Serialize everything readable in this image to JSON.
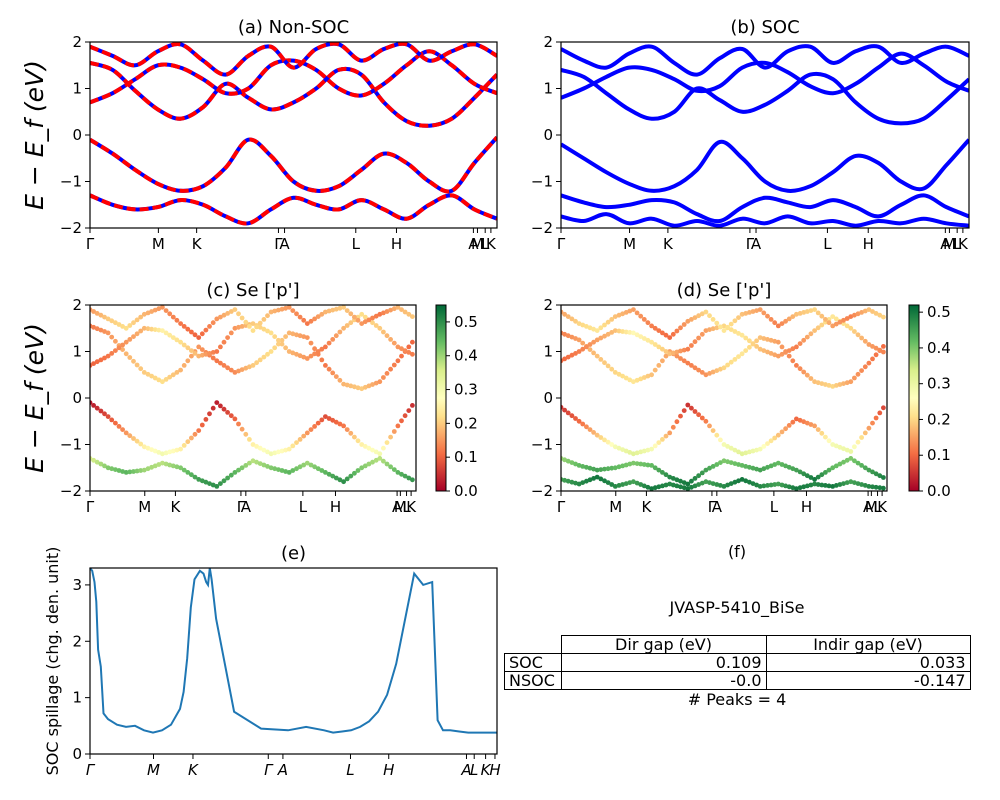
{
  "chart_data": [
    {
      "id": "a",
      "type": "line",
      "title": "(a) Non-SOC",
      "ylabel": "E − E_f (eV)",
      "ylim": [
        -2,
        2
      ],
      "yticks": [
        "−2",
        "−1",
        "0",
        "1",
        "2"
      ],
      "xticks": [
        "Γ",
        "M",
        "K",
        "Γ",
        "A",
        "L",
        "H",
        "A",
        "M",
        "L",
        "K"
      ],
      "series": [
        {
          "color": "#ff0000",
          "values": [
            1.55,
            1.4,
            0.95,
            0.55,
            0.35,
            0.6,
            1.1,
            0.8,
            0.55,
            0.7,
            1.0,
            1.4,
            1.3,
            0.7,
            0.3,
            0.2,
            0.35,
            0.8,
            1.3
          ]
        },
        {
          "color": "#ff0000",
          "values": [
            0.7,
            0.9,
            1.2,
            1.5,
            1.45,
            1.2,
            0.9,
            1.0,
            1.5,
            1.6,
            1.4,
            1.0,
            0.85,
            1.1,
            1.5,
            1.8,
            1.5,
            1.1,
            0.9
          ]
        },
        {
          "color": "#ff0000",
          "values": [
            -0.1,
            -0.4,
            -0.75,
            -1.05,
            -1.2,
            -1.1,
            -0.7,
            -0.1,
            -0.45,
            -1.0,
            -1.2,
            -1.1,
            -0.75,
            -0.4,
            -0.6,
            -1.0,
            -1.2,
            -0.6,
            -0.05
          ]
        },
        {
          "color": "#ff0000",
          "values": [
            -1.3,
            -1.5,
            -1.6,
            -1.55,
            -1.4,
            -1.5,
            -1.75,
            -1.9,
            -1.6,
            -1.35,
            -1.5,
            -1.6,
            -1.4,
            -1.6,
            -1.8,
            -1.5,
            -1.3,
            -1.6,
            -1.8
          ]
        },
        {
          "color": "#ff0000",
          "values": [
            1.9,
            1.7,
            1.5,
            1.8,
            1.95,
            1.6,
            1.3,
            1.7,
            1.9,
            1.45,
            1.85,
            1.95,
            1.6,
            1.85,
            1.95,
            1.6,
            1.8,
            1.95,
            1.7
          ]
        }
      ]
    },
    {
      "id": "b",
      "type": "line",
      "title": "(b) SOC",
      "ylim": [
        -2,
        2
      ],
      "yticks": [
        "−2",
        "−1",
        "0",
        "1",
        "2"
      ],
      "xticks": [
        "Γ",
        "M",
        "K",
        "Γ",
        "A",
        "L",
        "H",
        "A",
        "M",
        "L",
        "K"
      ],
      "series": [
        {
          "color": "#0000ff",
          "values": [
            1.4,
            1.25,
            0.9,
            0.55,
            0.35,
            0.5,
            1.0,
            0.75,
            0.5,
            0.65,
            0.95,
            1.3,
            1.2,
            0.7,
            0.35,
            0.25,
            0.35,
            0.75,
            1.2
          ]
        },
        {
          "color": "#0000ff",
          "values": [
            0.8,
            1.0,
            1.25,
            1.45,
            1.4,
            1.2,
            0.95,
            1.05,
            1.45,
            1.55,
            1.35,
            1.05,
            0.9,
            1.1,
            1.45,
            1.75,
            1.5,
            1.15,
            0.95
          ]
        },
        {
          "color": "#0000ff",
          "values": [
            -0.2,
            -0.5,
            -0.8,
            -1.05,
            -1.2,
            -1.1,
            -0.75,
            -0.15,
            -0.5,
            -1.0,
            -1.2,
            -1.1,
            -0.8,
            -0.45,
            -0.6,
            -1.0,
            -1.15,
            -0.65,
            -0.1
          ]
        },
        {
          "color": "#0000ff",
          "values": [
            -1.3,
            -1.45,
            -1.55,
            -1.5,
            -1.4,
            -1.45,
            -1.7,
            -1.85,
            -1.55,
            -1.35,
            -1.45,
            -1.55,
            -1.4,
            -1.55,
            -1.75,
            -1.5,
            -1.3,
            -1.55,
            -1.75
          ]
        },
        {
          "color": "#0000ff",
          "values": [
            -1.75,
            -1.85,
            -1.7,
            -1.9,
            -1.8,
            -1.95,
            -1.85,
            -1.95,
            -1.8,
            -1.9,
            -1.75,
            -1.9,
            -1.85,
            -1.95,
            -1.85,
            -1.9,
            -1.8,
            -1.9,
            -1.95
          ]
        },
        {
          "color": "#0000ff",
          "values": [
            1.85,
            1.6,
            1.45,
            1.75,
            1.9,
            1.55,
            1.3,
            1.65,
            1.85,
            1.45,
            1.8,
            1.9,
            1.55,
            1.8,
            1.9,
            1.55,
            1.75,
            1.9,
            1.7
          ]
        }
      ]
    },
    {
      "id": "c",
      "type": "scatter",
      "title": "(c)  Se ['p']",
      "ylabel": "E − E_f (eV)",
      "ylim": [
        -2,
        2
      ],
      "yticks": [
        "−2",
        "−1",
        "0",
        "1",
        "2"
      ],
      "xticks": [
        "Γ",
        "M",
        "K",
        "Γ",
        "A",
        "L",
        "H",
        "A",
        "M",
        "L",
        "K"
      ],
      "colorbar": {
        "ticks": [
          "0.0",
          "0.1",
          "0.2",
          "0.3",
          "0.4",
          "0.5"
        ],
        "min": 0.0,
        "max": 0.55
      },
      "series": [
        {
          "values": [
            1.55,
            1.4,
            0.95,
            0.55,
            0.35,
            0.6,
            1.1,
            0.8,
            0.55,
            0.7,
            1.0,
            1.4,
            1.3,
            0.7,
            0.3,
            0.2,
            0.35,
            0.8,
            1.3
          ],
          "weight": [
            0.12,
            0.15,
            0.18,
            0.2,
            0.22,
            0.18,
            0.15,
            0.12,
            0.14,
            0.2,
            0.22,
            0.18,
            0.15,
            0.12,
            0.18,
            0.2,
            0.15,
            0.12,
            0.1
          ]
        },
        {
          "values": [
            0.7,
            0.9,
            1.2,
            1.5,
            1.45,
            1.2,
            0.9,
            1.0,
            1.5,
            1.6,
            1.4,
            1.0,
            0.85,
            1.1,
            1.5,
            1.8,
            1.5,
            1.1,
            0.9
          ],
          "weight": [
            0.1,
            0.12,
            0.15,
            0.18,
            0.25,
            0.22,
            0.18,
            0.12,
            0.15,
            0.2,
            0.22,
            0.18,
            0.15,
            0.12,
            0.18,
            0.22,
            0.2,
            0.15,
            0.12
          ]
        },
        {
          "values": [
            -0.1,
            -0.4,
            -0.75,
            -1.05,
            -1.2,
            -1.1,
            -0.7,
            -0.1,
            -0.45,
            -1.0,
            -1.2,
            -1.1,
            -0.75,
            -0.4,
            -0.6,
            -1.0,
            -1.2,
            -0.6,
            -0.05
          ],
          "weight": [
            0.02,
            0.08,
            0.15,
            0.25,
            0.3,
            0.25,
            0.12,
            0.03,
            0.1,
            0.25,
            0.3,
            0.25,
            0.15,
            0.08,
            0.12,
            0.25,
            0.3,
            0.12,
            0.03
          ]
        },
        {
          "values": [
            -1.3,
            -1.5,
            -1.6,
            -1.55,
            -1.4,
            -1.5,
            -1.75,
            -1.9,
            -1.6,
            -1.35,
            -1.5,
            -1.6,
            -1.4,
            -1.6,
            -1.8,
            -1.5,
            -1.3,
            -1.6,
            -1.8
          ],
          "weight": [
            0.35,
            0.42,
            0.45,
            0.4,
            0.38,
            0.42,
            0.48,
            0.5,
            0.45,
            0.38,
            0.42,
            0.45,
            0.4,
            0.45,
            0.5,
            0.42,
            0.38,
            0.45,
            0.5
          ]
        },
        {
          "values": [
            1.9,
            1.7,
            1.5,
            1.8,
            1.95,
            1.6,
            1.3,
            1.7,
            1.9,
            1.45,
            1.85,
            1.95,
            1.6,
            1.85,
            1.95,
            1.6,
            1.8,
            1.95,
            1.7
          ],
          "weight": [
            0.15,
            0.2,
            0.22,
            0.18,
            0.15,
            0.12,
            0.1,
            0.15,
            0.2,
            0.22,
            0.18,
            0.15,
            0.12,
            0.18,
            0.2,
            0.15,
            0.12,
            0.18,
            0.2
          ]
        }
      ]
    },
    {
      "id": "d",
      "type": "scatter",
      "title": "(d) Se ['p']",
      "ylim": [
        -2,
        2
      ],
      "yticks": [
        "−2",
        "−1",
        "0",
        "1",
        "2"
      ],
      "xticks": [
        "Γ",
        "M",
        "K",
        "Γ",
        "A",
        "L",
        "H",
        "A",
        "M",
        "L",
        "K"
      ],
      "colorbar": {
        "ticks": [
          "0.0",
          "0.1",
          "0.2",
          "0.3",
          "0.4",
          "0.5"
        ],
        "min": 0.0,
        "max": 0.52
      },
      "series": [
        {
          "values": [
            1.4,
            1.25,
            0.9,
            0.55,
            0.35,
            0.5,
            1.0,
            0.75,
            0.5,
            0.65,
            0.95,
            1.3,
            1.2,
            0.7,
            0.35,
            0.25,
            0.35,
            0.75,
            1.2
          ],
          "weight": [
            0.12,
            0.15,
            0.18,
            0.2,
            0.22,
            0.18,
            0.15,
            0.12,
            0.14,
            0.2,
            0.22,
            0.18,
            0.15,
            0.12,
            0.18,
            0.2,
            0.15,
            0.12,
            0.1
          ]
        },
        {
          "values": [
            0.8,
            1.0,
            1.25,
            1.45,
            1.4,
            1.2,
            0.95,
            1.05,
            1.45,
            1.55,
            1.35,
            1.05,
            0.9,
            1.1,
            1.45,
            1.75,
            1.5,
            1.15,
            0.95
          ],
          "weight": [
            0.1,
            0.12,
            0.15,
            0.18,
            0.25,
            0.22,
            0.18,
            0.12,
            0.15,
            0.2,
            0.22,
            0.18,
            0.15,
            0.12,
            0.18,
            0.22,
            0.2,
            0.15,
            0.12
          ]
        },
        {
          "values": [
            -0.2,
            -0.5,
            -0.8,
            -1.05,
            -1.2,
            -1.1,
            -0.75,
            -0.15,
            -0.5,
            -1.0,
            -1.2,
            -1.1,
            -0.8,
            -0.45,
            -0.6,
            -1.0,
            -1.15,
            -0.65,
            -0.1
          ],
          "weight": [
            0.05,
            0.1,
            0.18,
            0.28,
            0.32,
            0.28,
            0.15,
            0.05,
            0.12,
            0.28,
            0.32,
            0.28,
            0.18,
            0.1,
            0.15,
            0.28,
            0.3,
            0.15,
            0.05
          ]
        },
        {
          "values": [
            -1.3,
            -1.45,
            -1.55,
            -1.5,
            -1.4,
            -1.45,
            -1.7,
            -1.85,
            -1.55,
            -1.35,
            -1.45,
            -1.55,
            -1.4,
            -1.55,
            -1.75,
            -1.5,
            -1.3,
            -1.55,
            -1.75
          ],
          "weight": [
            0.38,
            0.42,
            0.45,
            0.42,
            0.4,
            0.42,
            0.48,
            0.5,
            0.45,
            0.4,
            0.42,
            0.45,
            0.42,
            0.45,
            0.5,
            0.42,
            0.4,
            0.45,
            0.5
          ]
        },
        {
          "values": [
            -1.75,
            -1.85,
            -1.7,
            -1.9,
            -1.8,
            -1.95,
            -1.85,
            -1.95,
            -1.8,
            -1.9,
            -1.75,
            -1.9,
            -1.85,
            -1.95,
            -1.85,
            -1.9,
            -1.8,
            -1.9,
            -1.95
          ],
          "weight": [
            0.45,
            0.48,
            0.5,
            0.48,
            0.45,
            0.5,
            0.48,
            0.5,
            0.45,
            0.48,
            0.5,
            0.48,
            0.45,
            0.5,
            0.48,
            0.5,
            0.45,
            0.48,
            0.5
          ]
        },
        {
          "values": [
            1.85,
            1.6,
            1.45,
            1.75,
            1.9,
            1.55,
            1.3,
            1.65,
            1.85,
            1.45,
            1.8,
            1.9,
            1.55,
            1.8,
            1.9,
            1.55,
            1.75,
            1.9,
            1.7
          ],
          "weight": [
            0.15,
            0.2,
            0.22,
            0.18,
            0.15,
            0.12,
            0.1,
            0.15,
            0.2,
            0.22,
            0.18,
            0.15,
            0.12,
            0.18,
            0.2,
            0.15,
            0.12,
            0.18,
            0.2
          ]
        }
      ]
    },
    {
      "id": "e",
      "type": "line",
      "title": "(e)",
      "ylabel": "SOC spillage (chg. den. unit)",
      "ylim": [
        0,
        3.3
      ],
      "yticks": [
        "0",
        "1",
        "2",
        "3"
      ],
      "xticks": [
        "Γ",
        "M",
        "K",
        "Γ",
        "A",
        "L",
        "H",
        "A",
        "L",
        "K",
        "H"
      ],
      "series": [
        {
          "color": "#1f77b4",
          "x": [
            0,
            0.012,
            0.025,
            0.035,
            0.045,
            0.06,
            0.075,
            0.1,
            0.15,
            0.2,
            0.25,
            0.3,
            0.35,
            0.4,
            0.45,
            0.5,
            0.52,
            0.54,
            0.56,
            0.58,
            0.61,
            0.63,
            0.645,
            0.655,
            0.665,
            0.675,
            0.7,
            0.8,
            0.95,
            1.1,
            1.2,
            1.3,
            1.35,
            1.4,
            1.45,
            1.5,
            1.55,
            1.6,
            1.65,
            1.7,
            1.75,
            1.8,
            1.85,
            1.9,
            1.93,
            1.96,
            1.98,
            2.0,
            2.05,
            2.1,
            2.13,
            2.16,
            2.19,
            2.2,
            2.22,
            2.25,
            2.26
          ],
          "values": [
            3.3,
            3.25,
            3.05,
            2.7,
            1.85,
            1.55,
            0.72,
            0.62,
            0.52,
            0.48,
            0.5,
            0.42,
            0.38,
            0.42,
            0.52,
            0.8,
            1.1,
            1.7,
            2.6,
            3.1,
            3.25,
            3.2,
            3.05,
            3.0,
            3.3,
            3.1,
            2.4,
            0.75,
            0.45,
            0.42,
            0.48,
            0.42,
            0.38,
            0.4,
            0.42,
            0.48,
            0.58,
            0.75,
            1.05,
            1.6,
            2.4,
            3.2,
            3.0,
            3.05,
            0.6,
            0.42,
            0.42,
            0.42,
            0.4,
            0.38,
            0.38,
            0.38,
            0.38,
            0.38,
            0.38,
            0.38,
            0.38
          ]
        }
      ]
    }
  ],
  "table": {
    "label": "(f)",
    "title": "JVASP-5410_BiSe",
    "headers": [
      "Dir gap (eV)",
      "Indir gap (eV)"
    ],
    "rows": [
      {
        "name": "SOC",
        "dir": "0.109",
        "indir": "0.033"
      },
      {
        "name": "NSOC",
        "dir": "-0.0",
        "indir": "-0.147"
      }
    ],
    "note": "# Peaks = 4"
  }
}
